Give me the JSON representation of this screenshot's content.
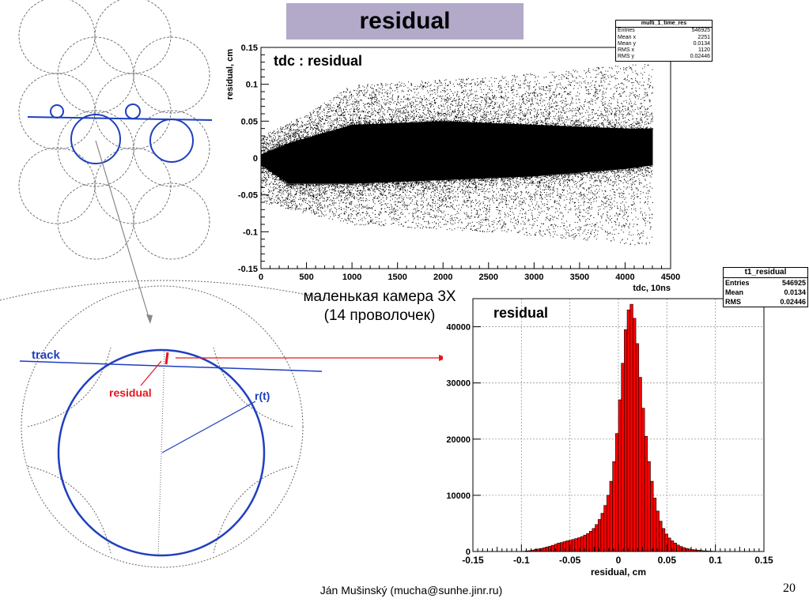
{
  "slide": {
    "title": "residual",
    "caption_line1": "маленькая камера 3X",
    "caption_line2": "(14 проволочек)",
    "footer": "Ján Mušinský (mucha@sunhe.jinr.ru)",
    "page_number": "20"
  },
  "diagram": {
    "track_label": "track",
    "residual_label": "residual",
    "radius_label": "r(t)",
    "colors": {
      "wire": "#1f3fbf",
      "residual": "#e8161c"
    }
  },
  "stats_scatter": {
    "name": "multi_1_time_res",
    "rows": [
      {
        "k": "Entries",
        "v": "546925"
      },
      {
        "k": "Mean x",
        "v": "2251"
      },
      {
        "k": "Mean y",
        "v": "0.0134"
      },
      {
        "k": "RMS x",
        "v": "1120"
      },
      {
        "k": "RMS y",
        "v": "0.02446"
      }
    ]
  },
  "stats_hist": {
    "name": "t1_residual",
    "rows": [
      {
        "k": "Entries",
        "v": "546925"
      },
      {
        "k": "Mean",
        "v": "0.0134"
      },
      {
        "k": "RMS",
        "v": "0.02446"
      }
    ]
  },
  "chart_data": [
    {
      "type": "scatter",
      "title": "tdc : residual",
      "xlabel": "tdc, 10ns",
      "ylabel": "residual, cm",
      "xlim": [
        0,
        4500
      ],
      "ylim": [
        -0.15,
        0.15
      ],
      "x_ticks": [
        0,
        500,
        1000,
        1500,
        2000,
        2500,
        3000,
        3500,
        4000,
        4500
      ],
      "y_ticks": [
        -0.15,
        -0.1,
        -0.05,
        0,
        0.05,
        0.1,
        0.15
      ],
      "x_tick_labels": [
        "0",
        "500",
        "1000",
        "1500",
        "2000",
        "2500",
        "3000",
        "3500",
        "4000",
        "4500"
      ],
      "y_tick_labels": [
        "-0.15",
        "-0.1",
        "-0.05",
        "0",
        "0.05",
        "0.1",
        "0.15"
      ],
      "grid": false,
      "color": "#000000",
      "band": {
        "x_range": [
          0,
          4300
        ],
        "core_upper": [
          [
            0,
            0.005
          ],
          [
            300,
            0.02
          ],
          [
            1000,
            0.045
          ],
          [
            2000,
            0.05
          ],
          [
            3000,
            0.045
          ],
          [
            4000,
            0.04
          ],
          [
            4300,
            0.04
          ]
        ],
        "core_lower": [
          [
            0,
            -0.01
          ],
          [
            300,
            -0.035
          ],
          [
            1000,
            -0.035
          ],
          [
            2000,
            -0.03
          ],
          [
            3000,
            -0.025
          ],
          [
            4000,
            -0.015
          ],
          [
            4300,
            -0.01
          ]
        ],
        "outer_upper": [
          [
            0,
            0.03
          ],
          [
            500,
            0.06
          ],
          [
            1000,
            0.1
          ],
          [
            2500,
            0.11
          ],
          [
            4300,
            0.13
          ]
        ],
        "outer_lower": [
          [
            0,
            -0.06
          ],
          [
            1000,
            -0.09
          ],
          [
            2500,
            -0.1
          ],
          [
            3500,
            -0.11
          ],
          [
            4300,
            -0.12
          ]
        ]
      }
    },
    {
      "type": "bar",
      "title": "residual",
      "xlabel": "residual, cm",
      "ylabel": "",
      "xlim": [
        -0.15,
        0.15
      ],
      "ylim": [
        0,
        45000
      ],
      "x_ticks": [
        -0.15,
        -0.1,
        -0.05,
        0,
        0.05,
        0.1,
        0.15
      ],
      "y_ticks": [
        0,
        10000,
        20000,
        30000,
        40000
      ],
      "x_tick_labels": [
        "-0.15",
        "-0.1",
        "-0.05",
        "0",
        "0.05",
        "0.1",
        "0.15"
      ],
      "y_tick_labels": [
        "0",
        "10000",
        "20000",
        "30000",
        "40000"
      ],
      "grid": true,
      "color": "#ff0000",
      "bin_width": 0.003,
      "x": [
        -0.15,
        -0.147,
        -0.144,
        -0.141,
        -0.138,
        -0.135,
        -0.132,
        -0.129,
        -0.126,
        -0.123,
        -0.12,
        -0.117,
        -0.114,
        -0.111,
        -0.108,
        -0.105,
        -0.102,
        -0.099,
        -0.096,
        -0.093,
        -0.09,
        -0.087,
        -0.084,
        -0.081,
        -0.078,
        -0.075,
        -0.072,
        -0.069,
        -0.066,
        -0.063,
        -0.06,
        -0.057,
        -0.054,
        -0.051,
        -0.048,
        -0.045,
        -0.042,
        -0.039,
        -0.036,
        -0.033,
        -0.03,
        -0.027,
        -0.024,
        -0.021,
        -0.018,
        -0.015,
        -0.012,
        -0.009,
        -0.006,
        -0.003,
        0,
        0.003,
        0.006,
        0.009,
        0.012,
        0.015,
        0.018,
        0.021,
        0.024,
        0.027,
        0.03,
        0.033,
        0.036,
        0.039,
        0.042,
        0.045,
        0.048,
        0.051,
        0.054,
        0.057,
        0.06,
        0.063,
        0.066,
        0.069,
        0.072,
        0.075,
        0.078,
        0.081,
        0.084,
        0.087,
        0.09,
        0.093,
        0.096,
        0.099,
        0.102,
        0.105,
        0.108,
        0.111,
        0.114,
        0.117,
        0.12,
        0.123,
        0.126,
        0.129,
        0.132,
        0.135,
        0.138,
        0.141,
        0.144,
        0.147
      ],
      "values": [
        0,
        0,
        0,
        0,
        0,
        0,
        0,
        0,
        0,
        0,
        0,
        0,
        0,
        0,
        0,
        0,
        0,
        50,
        100,
        150,
        250,
        350,
        450,
        550,
        650,
        800,
        950,
        1100,
        1300,
        1500,
        1600,
        1750,
        1900,
        2000,
        2150,
        2300,
        2450,
        2650,
        2900,
        3200,
        3600,
        4100,
        4800,
        5700,
        6800,
        8200,
        10000,
        12500,
        16000,
        21000,
        27000,
        33500,
        39500,
        43000,
        44000,
        41500,
        37000,
        31000,
        25500,
        20500,
        16000,
        12500,
        9500,
        7200,
        5400,
        4100,
        3100,
        2400,
        1900,
        1500,
        1150,
        900,
        700,
        550,
        450,
        350,
        280,
        220,
        170,
        130,
        100,
        70,
        50,
        30,
        20,
        10,
        0,
        0,
        0,
        0,
        0,
        0,
        0,
        0,
        0,
        0,
        0,
        0,
        0,
        0
      ]
    }
  ]
}
